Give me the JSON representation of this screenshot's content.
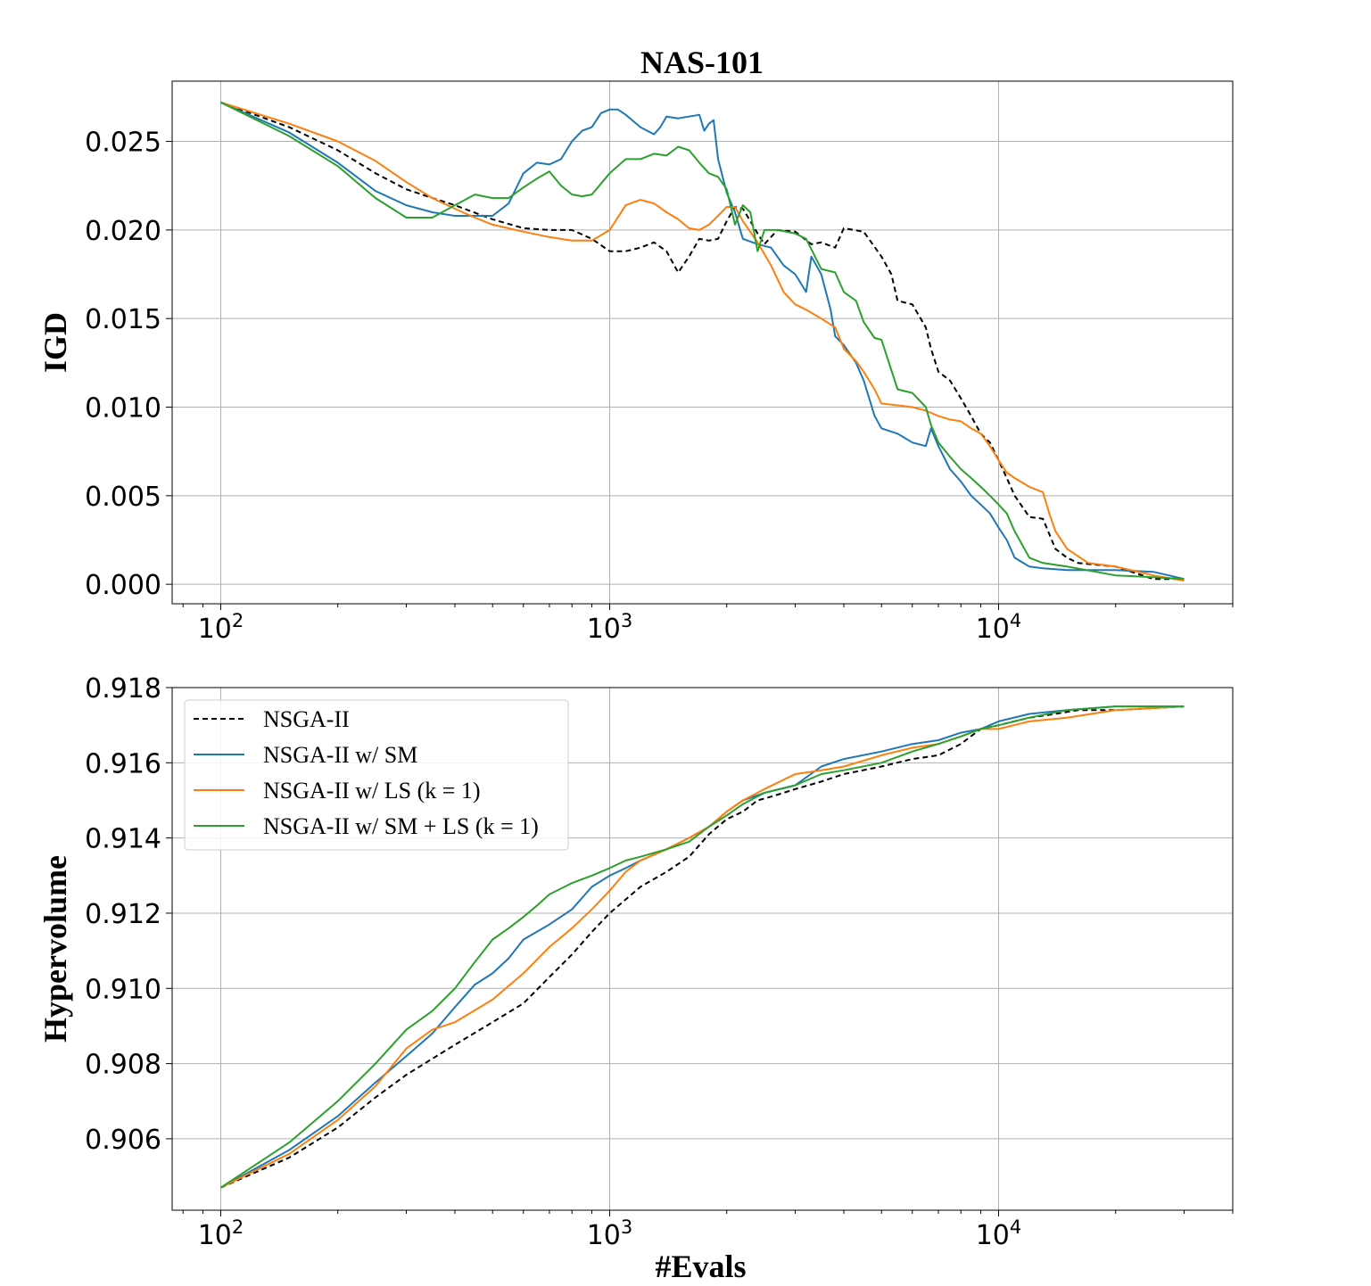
{
  "figure": {
    "title": "NAS-101"
  },
  "series_styles": [
    {
      "name": "NSGA-II",
      "color": "#000000",
      "dash": true
    },
    {
      "name": "NSGA-II w/ SM",
      "color": "#1f77b4",
      "dash": false
    },
    {
      "name": "NSGA-II w/ LS (k = 1)",
      "color": "#ff7f0e",
      "dash": false
    },
    {
      "name": "NSGA-II w/ SM + LS (k = 1)",
      "color": "#2ca02c",
      "dash": false
    }
  ],
  "x_tick_labels": [
    {
      "base": "10",
      "exp": "2"
    },
    {
      "base": "10",
      "exp": "3"
    },
    {
      "base": "10",
      "exp": "4"
    }
  ],
  "chart_data": [
    {
      "type": "line",
      "title": "NAS-101",
      "xlabel": "",
      "ylabel": "IGD",
      "xscale": "log",
      "xlim": [
        75,
        40000
      ],
      "ylim": [
        -0.0011,
        0.0284
      ],
      "yticks": [
        "0.000",
        "0.005",
        "0.010",
        "0.015",
        "0.020",
        "0.025"
      ],
      "grid": true,
      "legend": "none",
      "series": [
        {
          "name": "NSGA-II",
          "x": [
            100,
            150,
            200,
            250,
            300,
            350,
            400,
            500,
            600,
            700,
            800,
            900,
            1000,
            1100,
            1200,
            1300,
            1400,
            1500,
            1600,
            1700,
            1800,
            1900,
            2000,
            2100,
            2200,
            2300,
            2400,
            2500,
            2700,
            3000,
            3300,
            3500,
            3800,
            4000,
            4500,
            5000,
            5300,
            5500,
            6000,
            6500,
            6700,
            7000,
            7500,
            8000,
            8500,
            9000,
            9500,
            10000,
            10500,
            11000,
            12000,
            13000,
            14000,
            15000,
            16000,
            20000,
            25000,
            30000
          ],
          "y": [
            0.0272,
            0.0258,
            0.0245,
            0.0232,
            0.0223,
            0.0218,
            0.0214,
            0.0206,
            0.0201,
            0.02,
            0.02,
            0.0195,
            0.0188,
            0.0188,
            0.019,
            0.0193,
            0.0188,
            0.0176,
            0.0185,
            0.0195,
            0.0194,
            0.0195,
            0.0205,
            0.0213,
            0.0212,
            0.0205,
            0.0198,
            0.0192,
            0.02,
            0.0199,
            0.0192,
            0.0193,
            0.019,
            0.0201,
            0.0199,
            0.0185,
            0.0175,
            0.016,
            0.0158,
            0.0145,
            0.0133,
            0.012,
            0.0115,
            0.0105,
            0.0095,
            0.0085,
            0.008,
            0.007,
            0.006,
            0.005,
            0.0038,
            0.0037,
            0.002,
            0.0015,
            0.0012,
            0.001,
            0.0003,
            0.0003
          ]
        },
        {
          "name": "NSGA-II w/ SM",
          "x": [
            100,
            150,
            200,
            250,
            300,
            350,
            400,
            500,
            550,
            600,
            650,
            700,
            750,
            800,
            850,
            900,
            950,
            1000,
            1050,
            1100,
            1200,
            1300,
            1350,
            1400,
            1500,
            1600,
            1700,
            1750,
            1800,
            1850,
            1900,
            2000,
            2100,
            2200,
            2400,
            2600,
            2800,
            3000,
            3200,
            3300,
            3500,
            3700,
            3800,
            4000,
            4300,
            4500,
            4800,
            5000,
            5500,
            6000,
            6500,
            6700,
            7000,
            7500,
            8000,
            8500,
            9000,
            9500,
            10000,
            10500,
            11000,
            12000,
            13000,
            15000,
            20000,
            25000,
            30000
          ],
          "y": [
            0.0272,
            0.0255,
            0.0238,
            0.0222,
            0.0214,
            0.021,
            0.0208,
            0.0208,
            0.0215,
            0.0232,
            0.0238,
            0.0237,
            0.024,
            0.025,
            0.0256,
            0.0258,
            0.0266,
            0.0268,
            0.0268,
            0.0265,
            0.0258,
            0.0254,
            0.0258,
            0.0264,
            0.0263,
            0.0264,
            0.0265,
            0.0256,
            0.026,
            0.0262,
            0.024,
            0.0221,
            0.021,
            0.0195,
            0.0192,
            0.019,
            0.018,
            0.0175,
            0.0165,
            0.0185,
            0.0175,
            0.0155,
            0.014,
            0.0135,
            0.0125,
            0.0115,
            0.0095,
            0.0088,
            0.0085,
            0.008,
            0.0078,
            0.0088,
            0.0078,
            0.0065,
            0.0058,
            0.005,
            0.0045,
            0.004,
            0.0032,
            0.0025,
            0.0015,
            0.001,
            0.0009,
            0.0008,
            0.0008,
            0.0007,
            0.0003
          ]
        },
        {
          "name": "NSGA-II w/ LS (k = 1)",
          "x": [
            100,
            150,
            200,
            250,
            300,
            350,
            400,
            450,
            500,
            600,
            700,
            800,
            900,
            1000,
            1100,
            1200,
            1300,
            1400,
            1500,
            1600,
            1700,
            1800,
            1900,
            2000,
            2100,
            2200,
            2400,
            2600,
            2800,
            3000,
            3200,
            3500,
            3800,
            4000,
            4300,
            4500,
            4800,
            5000,
            5500,
            6000,
            6500,
            7000,
            7500,
            8000,
            8500,
            9000,
            9500,
            10000,
            10500,
            11000,
            12000,
            13000,
            13500,
            14000,
            15000,
            17000,
            20000,
            25000,
            30000
          ],
          "y": [
            0.0272,
            0.026,
            0.025,
            0.0239,
            0.0227,
            0.0218,
            0.0212,
            0.0207,
            0.0203,
            0.0199,
            0.0196,
            0.0194,
            0.0194,
            0.02,
            0.0214,
            0.0217,
            0.0215,
            0.021,
            0.0206,
            0.0201,
            0.02,
            0.0203,
            0.0208,
            0.0213,
            0.0213,
            0.0205,
            0.0193,
            0.018,
            0.0165,
            0.0158,
            0.0155,
            0.015,
            0.0145,
            0.0133,
            0.0126,
            0.012,
            0.011,
            0.0102,
            0.0101,
            0.01,
            0.0098,
            0.0095,
            0.0093,
            0.0092,
            0.0088,
            0.0085,
            0.0078,
            0.007,
            0.0063,
            0.006,
            0.0055,
            0.0052,
            0.004,
            0.003,
            0.002,
            0.0012,
            0.001,
            0.0005,
            0.0002
          ]
        },
        {
          "name": "NSGA-II w/ SM + LS (k = 1)",
          "x": [
            100,
            150,
            200,
            250,
            300,
            350,
            400,
            450,
            500,
            550,
            600,
            650,
            700,
            750,
            800,
            850,
            900,
            1000,
            1100,
            1200,
            1300,
            1400,
            1500,
            1600,
            1700,
            1800,
            1900,
            2000,
            2100,
            2200,
            2300,
            2400,
            2500,
            2700,
            3000,
            3200,
            3500,
            3800,
            4000,
            4300,
            4500,
            4800,
            5000,
            5500,
            6000,
            6500,
            6700,
            7000,
            7500,
            8000,
            8500,
            9000,
            9500,
            10000,
            10500,
            11000,
            12000,
            13000,
            15000,
            20000,
            25000,
            30000
          ],
          "y": [
            0.0272,
            0.0253,
            0.0236,
            0.0218,
            0.0207,
            0.0207,
            0.0214,
            0.022,
            0.0218,
            0.0218,
            0.0224,
            0.0229,
            0.0233,
            0.0225,
            0.022,
            0.0219,
            0.022,
            0.0232,
            0.024,
            0.024,
            0.0243,
            0.0242,
            0.0247,
            0.0245,
            0.0238,
            0.0232,
            0.023,
            0.0223,
            0.0203,
            0.0214,
            0.021,
            0.0188,
            0.02,
            0.02,
            0.0198,
            0.0195,
            0.0178,
            0.0176,
            0.0165,
            0.016,
            0.0148,
            0.0139,
            0.0138,
            0.011,
            0.0108,
            0.01,
            0.009,
            0.008,
            0.0072,
            0.0065,
            0.006,
            0.0055,
            0.005,
            0.0045,
            0.004,
            0.003,
            0.0015,
            0.0012,
            0.001,
            0.0005,
            0.0004,
            0.0003
          ]
        }
      ]
    },
    {
      "type": "line",
      "title": "",
      "xlabel": "#Evals",
      "ylabel": "Hypervolume",
      "xscale": "log",
      "xlim": [
        75,
        40000
      ],
      "ylim": [
        0.9041,
        0.918
      ],
      "yticks": [
        "0.906",
        "0.908",
        "0.910",
        "0.912",
        "0.914",
        "0.916",
        "0.918"
      ],
      "grid": true,
      "legend": "top-left",
      "series": [
        {
          "name": "NSGA-II",
          "x": [
            100,
            150,
            200,
            250,
            300,
            400,
            500,
            600,
            700,
            800,
            900,
            1000,
            1200,
            1400,
            1600,
            1800,
            2000,
            2200,
            2400,
            2600,
            2800,
            3000,
            3500,
            4000,
            5000,
            6000,
            7000,
            8000,
            9000,
            10000,
            12000,
            14000,
            16000,
            20000,
            30000
          ],
          "y": [
            0.9047,
            0.9055,
            0.9063,
            0.9071,
            0.9077,
            0.9085,
            0.9091,
            0.9096,
            0.9103,
            0.9109,
            0.9115,
            0.912,
            0.9127,
            0.9131,
            0.9135,
            0.9141,
            0.9145,
            0.9147,
            0.915,
            0.9151,
            0.9152,
            0.9153,
            0.9155,
            0.9157,
            0.9159,
            0.9161,
            0.9162,
            0.9165,
            0.9169,
            0.917,
            0.9172,
            0.9173,
            0.9174,
            0.9174,
            0.9175
          ]
        },
        {
          "name": "NSGA-II w/ SM",
          "x": [
            100,
            150,
            200,
            250,
            300,
            350,
            400,
            450,
            500,
            550,
            600,
            700,
            800,
            900,
            1000,
            1100,
            1200,
            1400,
            1600,
            1800,
            2000,
            2200,
            2500,
            3000,
            3500,
            4000,
            5000,
            6000,
            7000,
            8000,
            9000,
            10000,
            12000,
            15000,
            20000,
            30000
          ],
          "y": [
            0.9047,
            0.9057,
            0.9066,
            0.9075,
            0.9082,
            0.9088,
            0.9095,
            0.9101,
            0.9104,
            0.9108,
            0.9113,
            0.9117,
            0.9121,
            0.9127,
            0.913,
            0.9132,
            0.9134,
            0.9137,
            0.914,
            0.9143,
            0.9147,
            0.915,
            0.9152,
            0.9154,
            0.9159,
            0.9161,
            0.9163,
            0.9165,
            0.9166,
            0.9168,
            0.9169,
            0.9171,
            0.9173,
            0.9174,
            0.9175,
            0.9175
          ]
        },
        {
          "name": "NSGA-II w/ LS (k = 1)",
          "x": [
            100,
            150,
            200,
            250,
            300,
            350,
            400,
            500,
            600,
            700,
            800,
            900,
            1000,
            1100,
            1200,
            1400,
            1600,
            1800,
            2000,
            2200,
            2500,
            3000,
            3500,
            4000,
            5000,
            6000,
            7000,
            8000,
            9000,
            10000,
            12000,
            15000,
            20000,
            30000
          ],
          "y": [
            0.9047,
            0.9056,
            0.9065,
            0.9074,
            0.9084,
            0.9089,
            0.9091,
            0.9097,
            0.9104,
            0.9111,
            0.9116,
            0.9121,
            0.9126,
            0.9131,
            0.9134,
            0.9137,
            0.914,
            0.9143,
            0.9147,
            0.915,
            0.9153,
            0.9157,
            0.9158,
            0.9159,
            0.9162,
            0.9164,
            0.9165,
            0.9167,
            0.9169,
            0.9169,
            0.9171,
            0.9172,
            0.9174,
            0.9175
          ]
        },
        {
          "name": "NSGA-II w/ SM + LS (k = 1)",
          "x": [
            100,
            150,
            200,
            250,
            300,
            350,
            400,
            450,
            500,
            550,
            600,
            650,
            700,
            800,
            900,
            1000,
            1100,
            1200,
            1400,
            1600,
            1800,
            2000,
            2200,
            2500,
            3000,
            3500,
            4000,
            5000,
            6000,
            7000,
            8000,
            9000,
            10000,
            12000,
            15000,
            20000,
            30000
          ],
          "y": [
            0.9047,
            0.9059,
            0.907,
            0.908,
            0.9089,
            0.9094,
            0.91,
            0.9107,
            0.9113,
            0.9116,
            0.9119,
            0.9122,
            0.9125,
            0.9128,
            0.913,
            0.9132,
            0.9134,
            0.9135,
            0.9137,
            0.9139,
            0.9143,
            0.9146,
            0.9149,
            0.9152,
            0.9154,
            0.9157,
            0.9158,
            0.916,
            0.9163,
            0.9165,
            0.9167,
            0.9169,
            0.917,
            0.9172,
            0.9174,
            0.9175,
            0.9175
          ]
        }
      ]
    }
  ]
}
